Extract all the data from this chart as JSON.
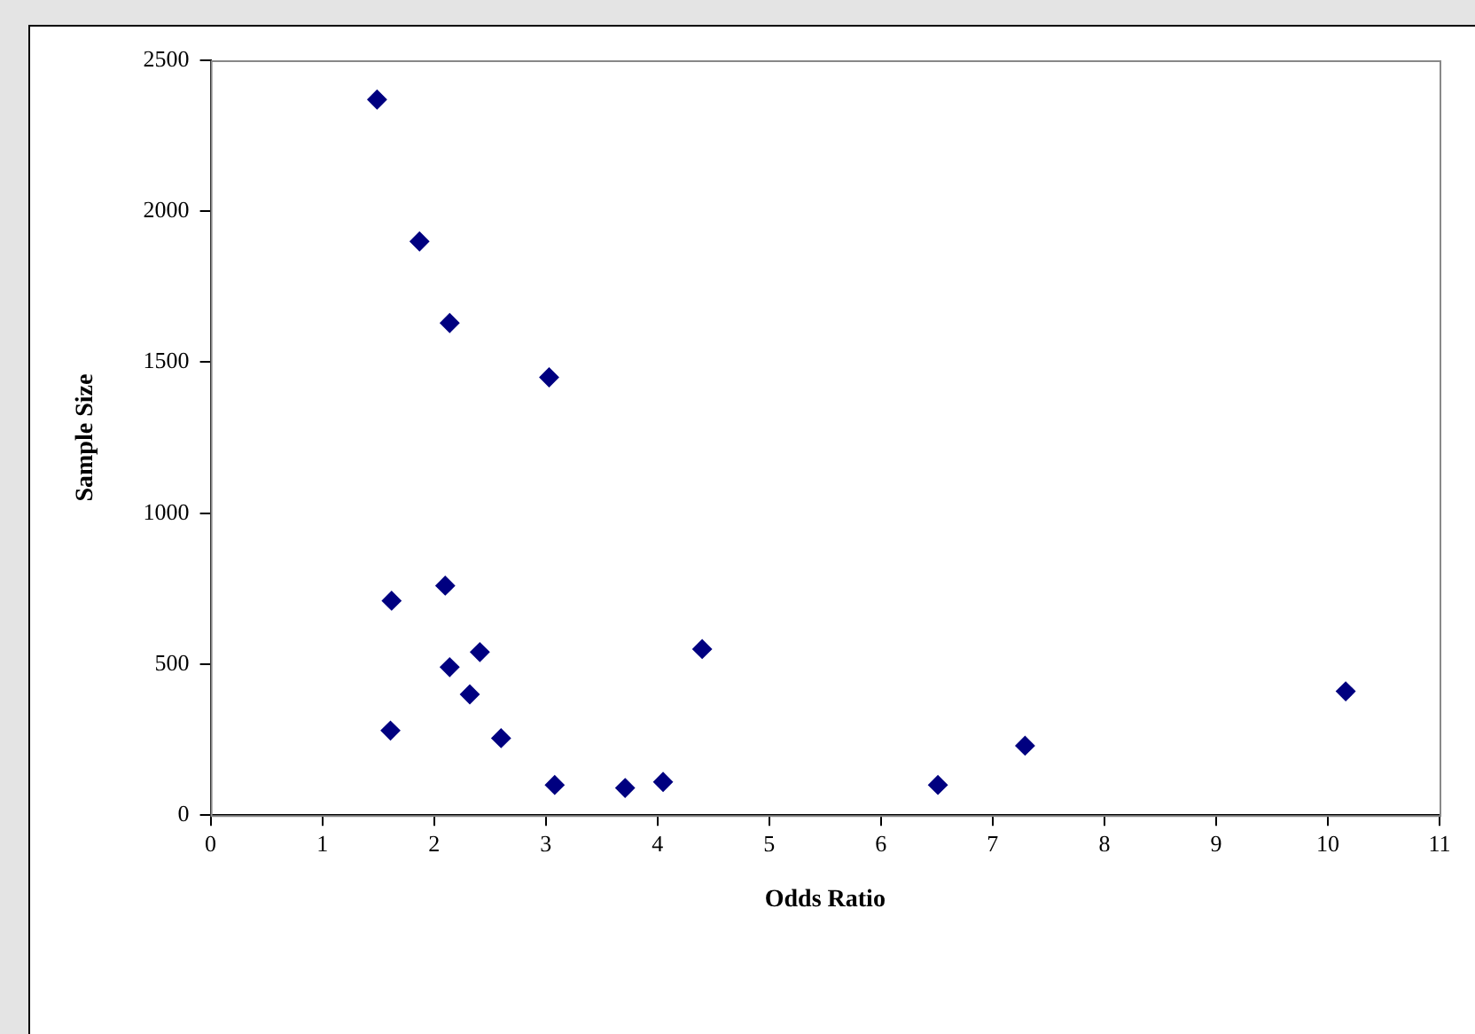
{
  "chart_data": {
    "type": "scatter",
    "xlabel": "Odds Ratio",
    "ylabel": "Sample Size",
    "x": [
      1.49,
      1.87,
      2.14,
      3.03,
      1.62,
      2.1,
      2.41,
      2.14,
      2.32,
      1.61,
      2.6,
      3.08,
      3.71,
      4.05,
      4.4,
      6.51,
      7.29,
      10.16
    ],
    "series": [
      {
        "color": "#000080",
        "values": [
          2370,
          1900,
          1630,
          1450,
          710,
          760,
          540,
          490,
          400,
          280,
          255,
          100,
          90,
          110,
          550,
          100,
          230,
          410
        ]
      }
    ],
    "xlim": [
      0,
      11
    ],
    "xticks": [
      0,
      1,
      2,
      3,
      4,
      5,
      6,
      7,
      8,
      9,
      10,
      11
    ],
    "ylim": [
      0,
      2500
    ],
    "yticks": [
      0,
      500,
      1000,
      1500,
      2000,
      2500
    ],
    "grid": false,
    "legend": false,
    "marker": "diamond"
  }
}
